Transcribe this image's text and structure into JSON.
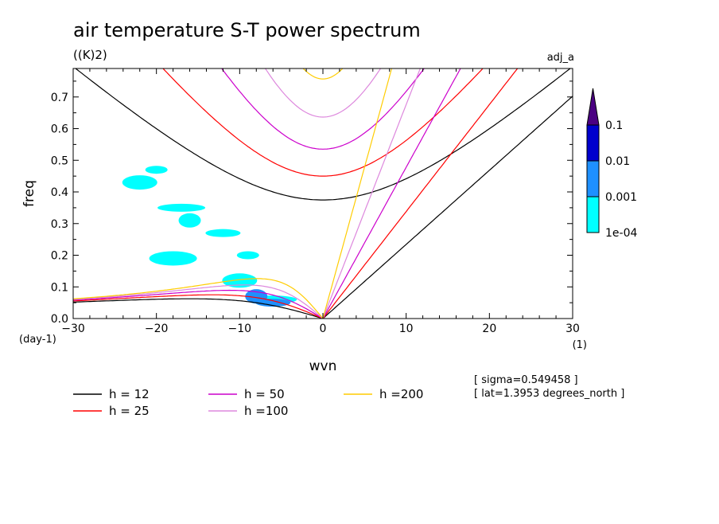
{
  "chart_data": {
    "type": "heatmap",
    "title": "air temperature S-T power spectrum",
    "units": "((K)2)",
    "dataset_label": "adj_a",
    "xlabel": "wvn",
    "ylabel": "freq",
    "x_unit": "(1)",
    "y_unit": "(day-1)",
    "xlim": [
      -30,
      30
    ],
    "ylim": [
      0,
      0.79
    ],
    "xticks": [
      -30,
      -20,
      -10,
      0,
      10,
      20,
      30
    ],
    "xtick_labels": [
      "-30",
      "-20",
      "-10",
      "0",
      "10",
      "20",
      "30"
    ],
    "yticks": [
      0,
      0.1,
      0.2,
      0.3,
      0.4,
      0.5,
      0.6,
      0.7
    ],
    "ytick_labels": [
      "0.0",
      "0.1",
      "0.2",
      "0.3",
      "0.4",
      "0.5",
      "0.6",
      "0.7"
    ],
    "colorbar": {
      "levels": [
        "1e-04",
        "0.001",
        "0.01",
        "0.1"
      ],
      "colors": [
        "#00ffff",
        "#1e90ff",
        "#0000cd",
        "#4b0082"
      ]
    },
    "equivalent_depth_curves": [
      {
        "label": "h = 12",
        "h": 12,
        "color": "#000000"
      },
      {
        "label": "h = 25",
        "h": 25,
        "color": "#ff0000"
      },
      {
        "label": "h = 50",
        "h": 50,
        "color": "#cc00cc"
      },
      {
        "label": "h =100",
        "h": 100,
        "color": "#dd88dd"
      },
      {
        "label": "h =200",
        "h": 200,
        "color": "#ffcc00"
      }
    ],
    "power_regions": [
      {
        "level": "1e-04",
        "x": -20,
        "y": 0.47
      },
      {
        "level": "1e-04",
        "x": -22,
        "y": 0.43
      },
      {
        "level": "1e-04",
        "x": -17,
        "y": 0.35
      },
      {
        "level": "1e-04",
        "x": -16,
        "y": 0.31
      },
      {
        "level": "1e-04",
        "x": -12,
        "y": 0.27
      },
      {
        "level": "1e-04",
        "x": -18,
        "y": 0.19
      },
      {
        "level": "1e-04",
        "x": -9,
        "y": 0.2
      },
      {
        "level": "1e-04",
        "x": -10,
        "y": 0.12
      },
      {
        "level": "1e-04",
        "x": -6,
        "y": 0.06
      },
      {
        "level": "0.001",
        "x": -8,
        "y": 0.07
      },
      {
        "level": "0.001",
        "x": -6,
        "y": 0.05
      }
    ]
  },
  "legend_entries": [
    "h = 12",
    "h = 25",
    "h = 50",
    "h =100",
    "h =200"
  ],
  "info": {
    "sigma": "[ sigma=0.549458 ]",
    "lat": "[ lat=1.3953 degrees_north ]"
  }
}
